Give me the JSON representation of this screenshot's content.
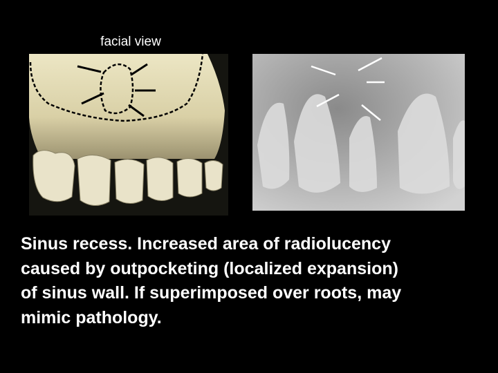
{
  "slide": {
    "image_label": "facial view",
    "caption_lines": [
      "Sinus recess. Increased area of radiolucency",
      "caused by outpocketing (localized expansion)",
      "of sinus wall. If superimposed over roots, may",
      "mimic pathology."
    ]
  }
}
